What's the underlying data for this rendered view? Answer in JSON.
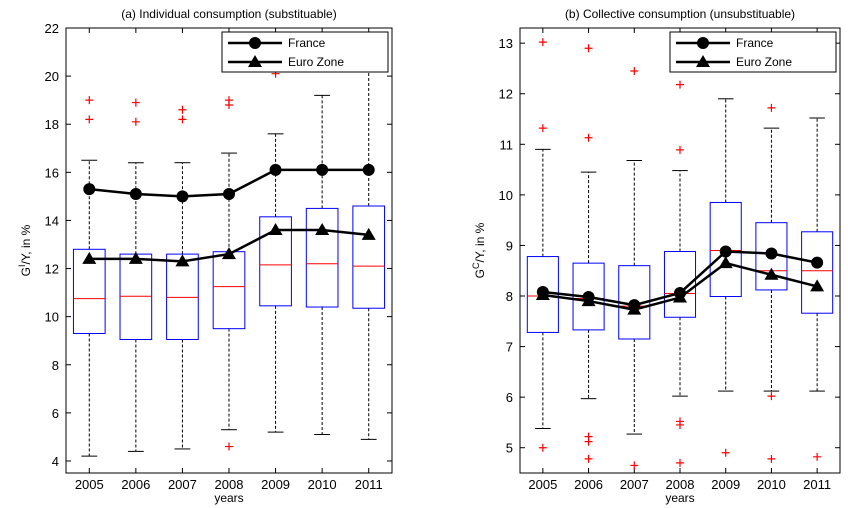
{
  "colors": {
    "box": "#0000ff",
    "median": "#ff0000",
    "outlier": "#ff0000",
    "whisker": "#000000",
    "series": "#000000"
  },
  "chart_data": [
    {
      "type": "box",
      "title": "(a) Individual consumption (substituable)",
      "xlabel": "years",
      "ylabel_main": "G",
      "ylabel_sup": "I",
      "ylabel_rest": "/Y, in %",
      "categories": [
        "2005",
        "2006",
        "2007",
        "2008",
        "2009",
        "2010",
        "2011"
      ],
      "ylim": [
        3.5,
        22
      ],
      "yticks": [
        4,
        6,
        8,
        10,
        12,
        14,
        16,
        18,
        20,
        22
      ],
      "ytick_labels": [
        "4",
        "6",
        "8",
        "10",
        "12",
        "14",
        "16",
        "18",
        "20",
        "22"
      ],
      "legend_position": "top-right",
      "boxes": [
        {
          "q1": 9.3,
          "median": 10.75,
          "q3": 12.8,
          "low": 4.2,
          "high": 16.5,
          "outliers": [
            18.2,
            19.0
          ]
        },
        {
          "q1": 9.05,
          "median": 10.85,
          "q3": 12.6,
          "low": 4.4,
          "high": 16.4,
          "outliers": [
            18.1,
            18.9
          ]
        },
        {
          "q1": 9.05,
          "median": 10.8,
          "q3": 12.6,
          "low": 4.5,
          "high": 16.4,
          "outliers": [
            18.2,
            18.6
          ]
        },
        {
          "q1": 9.5,
          "median": 11.25,
          "q3": 12.7,
          "low": 5.3,
          "high": 16.8,
          "outliers": [
            4.6,
            18.8,
            19.0
          ]
        },
        {
          "q1": 10.45,
          "median": 12.15,
          "q3": 14.15,
          "low": 5.2,
          "high": 17.6,
          "outliers": [
            20.1
          ]
        },
        {
          "q1": 10.4,
          "median": 12.2,
          "q3": 14.5,
          "low": 5.1,
          "high": 19.2,
          "outliers": []
        },
        {
          "q1": 10.35,
          "median": 12.1,
          "q3": 14.6,
          "low": 4.9,
          "high": 20.3,
          "outliers": []
        }
      ],
      "series": [
        {
          "name": "France",
          "marker": "circle",
          "values": [
            15.3,
            15.1,
            15.0,
            15.1,
            16.1,
            16.1,
            16.1
          ]
        },
        {
          "name": "Euro Zone",
          "marker": "triangle",
          "values": [
            12.4,
            12.4,
            12.3,
            12.6,
            13.6,
            13.6,
            13.4
          ]
        }
      ]
    },
    {
      "type": "box",
      "title": "(b) Collective consumption (unsubstituable)",
      "xlabel": "years",
      "ylabel_main": "G",
      "ylabel_sup": "C",
      "ylabel_rest": "/Y, in %",
      "categories": [
        "2005",
        "2006",
        "2007",
        "2008",
        "2009",
        "2010",
        "2011"
      ],
      "ylim": [
        4.5,
        13.3
      ],
      "yticks": [
        5,
        6,
        7,
        8,
        9,
        10,
        11,
        12,
        13
      ],
      "ytick_labels": [
        "5",
        "6",
        "7",
        "8",
        "9",
        "10",
        "11",
        "12",
        "13"
      ],
      "legend_position": "top-right",
      "boxes": [
        {
          "q1": 7.28,
          "median": 8.0,
          "q3": 8.78,
          "low": 5.38,
          "high": 10.9,
          "outliers": [
            5.0,
            11.32,
            13.02
          ]
        },
        {
          "q1": 7.33,
          "median": 7.95,
          "q3": 8.65,
          "low": 5.97,
          "high": 10.45,
          "outliers": [
            4.78,
            5.12,
            5.22,
            11.13,
            12.9
          ]
        },
        {
          "q1": 7.15,
          "median": 7.8,
          "q3": 8.6,
          "low": 5.27,
          "high": 10.68,
          "outliers": [
            4.65,
            12.45
          ]
        },
        {
          "q1": 7.58,
          "median": 8.05,
          "q3": 8.88,
          "low": 6.02,
          "high": 10.48,
          "outliers": [
            4.7,
            5.45,
            5.52,
            10.89,
            12.18
          ]
        },
        {
          "q1": 7.99,
          "median": 8.9,
          "q3": 9.85,
          "low": 6.12,
          "high": 11.9,
          "outliers": [
            4.9
          ]
        },
        {
          "q1": 8.12,
          "median": 8.5,
          "q3": 9.45,
          "low": 6.12,
          "high": 11.32,
          "outliers": [
            4.78,
            6.02,
            11.72
          ]
        },
        {
          "q1": 7.66,
          "median": 8.5,
          "q3": 9.27,
          "low": 6.12,
          "high": 11.52,
          "outliers": [
            4.82
          ]
        }
      ],
      "series": [
        {
          "name": "France",
          "marker": "circle",
          "values": [
            8.08,
            7.98,
            7.82,
            8.06,
            8.88,
            8.84,
            8.66
          ]
        },
        {
          "name": "Euro Zone",
          "marker": "triangle",
          "values": [
            8.02,
            7.9,
            7.73,
            7.97,
            8.65,
            8.42,
            8.19
          ]
        }
      ]
    }
  ]
}
